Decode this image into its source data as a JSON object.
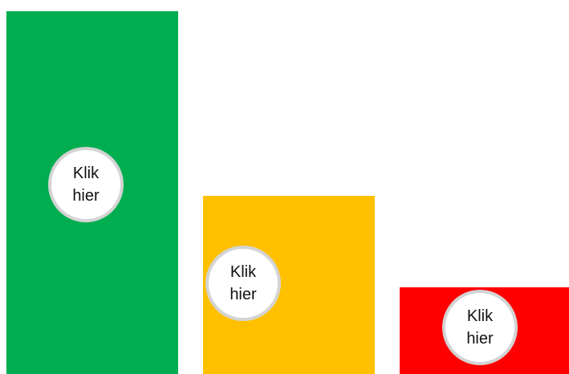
{
  "panels": [
    {
      "name": "green",
      "color": "#00ae50",
      "button_label": "Klik hier"
    },
    {
      "name": "yellow",
      "color": "#ffc000",
      "button_label": "Klik hier"
    },
    {
      "name": "red",
      "color": "#ff0000",
      "button_label": "Klik hier"
    }
  ]
}
